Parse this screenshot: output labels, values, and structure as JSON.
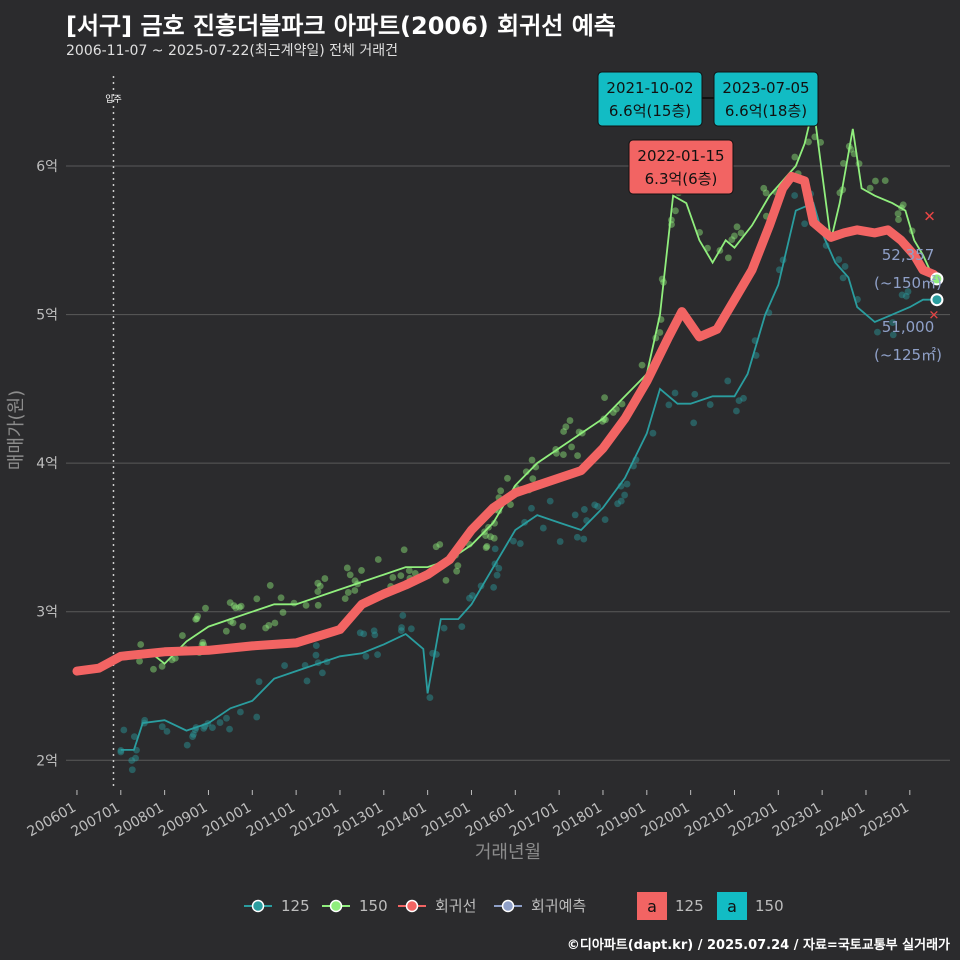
{
  "header": {
    "title": "[서구] 금호 진흥더블파크 아파트(2006) 회귀선 예측",
    "subtitle": "2006-11-07 ~ 2025-07-22(최근계약일) 전체 거래건"
  },
  "caption": "©디아파트(dapt.kr) / 2025.07.24 / 자료=국토교통부 실거래가",
  "colors": {
    "s125": "#2a9d9f",
    "s150": "#90ee7d",
    "regression": "#f26463",
    "forecast": "#8fa0c8",
    "grid": "#5a5a5a",
    "bg": "#2b2b2d"
  },
  "chart_data": {
    "type": "line",
    "xlabel": "거래년월",
    "ylabel": "매매가(원)",
    "ylim": [
      1.8,
      6.7
    ],
    "xlim": [
      "2005-10",
      "2025-12"
    ],
    "y_ticks": [
      {
        "value": 2,
        "label": "2억"
      },
      {
        "value": 3,
        "label": "3억"
      },
      {
        "value": 4,
        "label": "4억"
      },
      {
        "value": 5,
        "label": "5억"
      },
      {
        "value": 6,
        "label": "6억"
      }
    ],
    "x_ticks": [
      "200601",
      "200701",
      "200801",
      "200901",
      "201001",
      "201101",
      "201201",
      "201301",
      "201401",
      "201501",
      "201601",
      "201701",
      "201801",
      "201901",
      "202001",
      "202101",
      "202201",
      "202301",
      "202401",
      "202501"
    ],
    "move_in": {
      "x": "2006-11",
      "label": "입주"
    },
    "series": [
      {
        "name": "125",
        "values": [
          [
            2007.0,
            2.07
          ],
          [
            2007.3,
            2.07
          ],
          [
            2007.5,
            2.25
          ],
          [
            2008.0,
            2.27
          ],
          [
            2008.5,
            2.2
          ],
          [
            2009.0,
            2.25
          ],
          [
            2009.5,
            2.35
          ],
          [
            2010.0,
            2.4
          ],
          [
            2010.5,
            2.55
          ],
          [
            2011.0,
            2.6
          ],
          [
            2011.5,
            2.65
          ],
          [
            2012.0,
            2.7
          ],
          [
            2012.5,
            2.72
          ],
          [
            2013.0,
            2.78
          ],
          [
            2013.5,
            2.85
          ],
          [
            2013.9,
            2.75
          ],
          [
            2014.0,
            2.45
          ],
          [
            2014.3,
            2.95
          ],
          [
            2014.7,
            2.95
          ],
          [
            2015.0,
            3.05
          ],
          [
            2015.5,
            3.3
          ],
          [
            2016.0,
            3.55
          ],
          [
            2016.5,
            3.65
          ],
          [
            2017.0,
            3.6
          ],
          [
            2017.5,
            3.55
          ],
          [
            2018.0,
            3.7
          ],
          [
            2018.5,
            3.9
          ],
          [
            2019.0,
            4.2
          ],
          [
            2019.3,
            4.5
          ],
          [
            2019.7,
            4.4
          ],
          [
            2020.0,
            4.4
          ],
          [
            2020.5,
            4.45
          ],
          [
            2021.0,
            4.45
          ],
          [
            2021.3,
            4.6
          ],
          [
            2021.7,
            5.0
          ],
          [
            2022.0,
            5.2
          ],
          [
            2022.4,
            5.7
          ],
          [
            2022.8,
            5.75
          ],
          [
            2023.0,
            5.55
          ],
          [
            2023.3,
            5.35
          ],
          [
            2023.6,
            5.25
          ],
          [
            2023.8,
            5.05
          ],
          [
            2024.2,
            4.95
          ],
          [
            2024.6,
            5.0
          ],
          [
            2025.0,
            5.05
          ],
          [
            2025.3,
            5.1
          ],
          [
            2025.55,
            5.1
          ]
        ]
      },
      {
        "name": "150",
        "values": [
          [
            2007.3,
            2.7
          ],
          [
            2007.7,
            2.72
          ],
          [
            2008.0,
            2.65
          ],
          [
            2008.5,
            2.8
          ],
          [
            2009.0,
            2.9
          ],
          [
            2009.5,
            2.95
          ],
          [
            2010.0,
            3.0
          ],
          [
            2010.5,
            3.05
          ],
          [
            2011.0,
            3.05
          ],
          [
            2011.5,
            3.1
          ],
          [
            2012.0,
            3.15
          ],
          [
            2012.5,
            3.2
          ],
          [
            2013.0,
            3.25
          ],
          [
            2013.5,
            3.3
          ],
          [
            2014.0,
            3.3
          ],
          [
            2014.5,
            3.35
          ],
          [
            2015.0,
            3.45
          ],
          [
            2015.5,
            3.6
          ],
          [
            2016.0,
            3.85
          ],
          [
            2016.5,
            4.0
          ],
          [
            2017.0,
            4.1
          ],
          [
            2017.5,
            4.2
          ],
          [
            2018.0,
            4.3
          ],
          [
            2018.5,
            4.45
          ],
          [
            2019.0,
            4.6
          ],
          [
            2019.3,
            5.0
          ],
          [
            2019.6,
            5.8
          ],
          [
            2019.9,
            5.75
          ],
          [
            2020.2,
            5.5
          ],
          [
            2020.5,
            5.35
          ],
          [
            2020.8,
            5.5
          ],
          [
            2021.0,
            5.45
          ],
          [
            2021.4,
            5.6
          ],
          [
            2021.8,
            5.8
          ],
          [
            2022.1,
            5.9
          ],
          [
            2022.4,
            6.0
          ],
          [
            2022.6,
            6.15
          ],
          [
            2022.8,
            6.4
          ],
          [
            2023.0,
            5.95
          ],
          [
            2023.2,
            5.5
          ],
          [
            2023.4,
            5.75
          ],
          [
            2023.7,
            6.25
          ],
          [
            2023.9,
            5.85
          ],
          [
            2024.2,
            5.8
          ],
          [
            2024.6,
            5.75
          ],
          [
            2024.9,
            5.7
          ],
          [
            2025.1,
            5.5
          ],
          [
            2025.3,
            5.4
          ],
          [
            2025.55,
            5.24
          ]
        ]
      },
      {
        "name": "회귀선",
        "values": [
          [
            2006.0,
            2.6
          ],
          [
            2006.5,
            2.62
          ],
          [
            2007.0,
            2.7
          ],
          [
            2008.0,
            2.73
          ],
          [
            2009.0,
            2.74
          ],
          [
            2010.0,
            2.77
          ],
          [
            2011.0,
            2.79
          ],
          [
            2012.0,
            2.88
          ],
          [
            2012.5,
            3.05
          ],
          [
            2013.0,
            3.12
          ],
          [
            2013.5,
            3.18
          ],
          [
            2014.0,
            3.25
          ],
          [
            2014.5,
            3.35
          ],
          [
            2015.0,
            3.55
          ],
          [
            2015.5,
            3.7
          ],
          [
            2016.0,
            3.8
          ],
          [
            2016.5,
            3.85
          ],
          [
            2017.0,
            3.9
          ],
          [
            2017.5,
            3.95
          ],
          [
            2018.0,
            4.1
          ],
          [
            2018.5,
            4.3
          ],
          [
            2019.0,
            4.55
          ],
          [
            2019.5,
            4.85
          ],
          [
            2019.8,
            5.02
          ],
          [
            2020.2,
            4.85
          ],
          [
            2020.6,
            4.9
          ],
          [
            2021.0,
            5.1
          ],
          [
            2021.4,
            5.3
          ],
          [
            2021.8,
            5.6
          ],
          [
            2022.1,
            5.85
          ],
          [
            2022.3,
            5.93
          ],
          [
            2022.6,
            5.9
          ],
          [
            2022.8,
            5.62
          ],
          [
            2023.2,
            5.52
          ],
          [
            2023.5,
            5.55
          ],
          [
            2023.8,
            5.57
          ],
          [
            2024.2,
            5.55
          ],
          [
            2024.5,
            5.57
          ],
          [
            2024.8,
            5.5
          ],
          [
            2025.1,
            5.4
          ],
          [
            2025.3,
            5.3
          ],
          [
            2025.55,
            5.27
          ]
        ]
      },
      {
        "name": "회귀예측",
        "values": []
      }
    ],
    "legend": {
      "items": [
        "125",
        "150",
        "회귀선",
        "회귀예측"
      ],
      "label_keys": [
        {
          "swatch": "a",
          "label": "125"
        },
        {
          "swatch": "a",
          "label": "150"
        }
      ]
    },
    "annotations": [
      {
        "date": "2021-10-02",
        "value_text": "6.6억(15층)",
        "series": "150"
      },
      {
        "date": "2023-07-05",
        "value_text": "6.6억(18층)",
        "series": "150"
      },
      {
        "date": "2022-01-15",
        "value_text": "6.3억(6층)",
        "series": "125"
      }
    ],
    "end_labels": [
      {
        "value": "52,357",
        "area": "(~150㎡)"
      },
      {
        "value": "51,000",
        "area": "(~125㎡)"
      }
    ]
  }
}
